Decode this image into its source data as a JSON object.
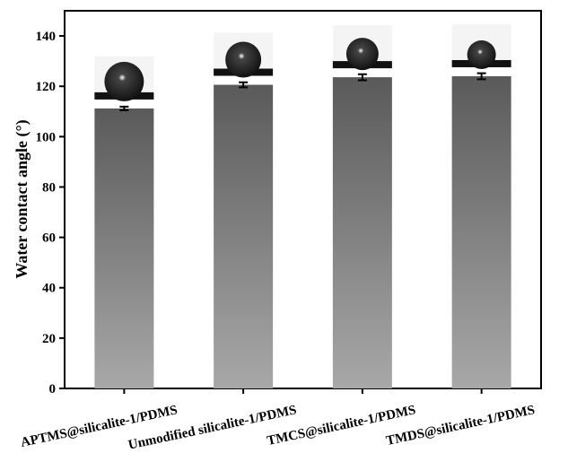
{
  "chart_data": {
    "type": "bar",
    "y_label": "Water contact angle (°)",
    "categories": [
      "APTMS@silicalite-1/PDMS",
      "Unmodified silicalite-1/PDMS",
      "TMCS@silicalite-1/PDMS",
      "TMDS@silicalite-1/PDMS"
    ],
    "values": [
      111.2,
      120.6,
      123.6,
      124.0
    ],
    "errors": [
      0.7,
      1.0,
      1.2,
      1.2
    ],
    "colors": [
      "#5a5a5a",
      "#a8a8a8"
    ],
    "ylim": [
      0,
      150
    ],
    "yticks": [
      0,
      20,
      40,
      60,
      80,
      100,
      120,
      140
    ],
    "grid": false
  }
}
